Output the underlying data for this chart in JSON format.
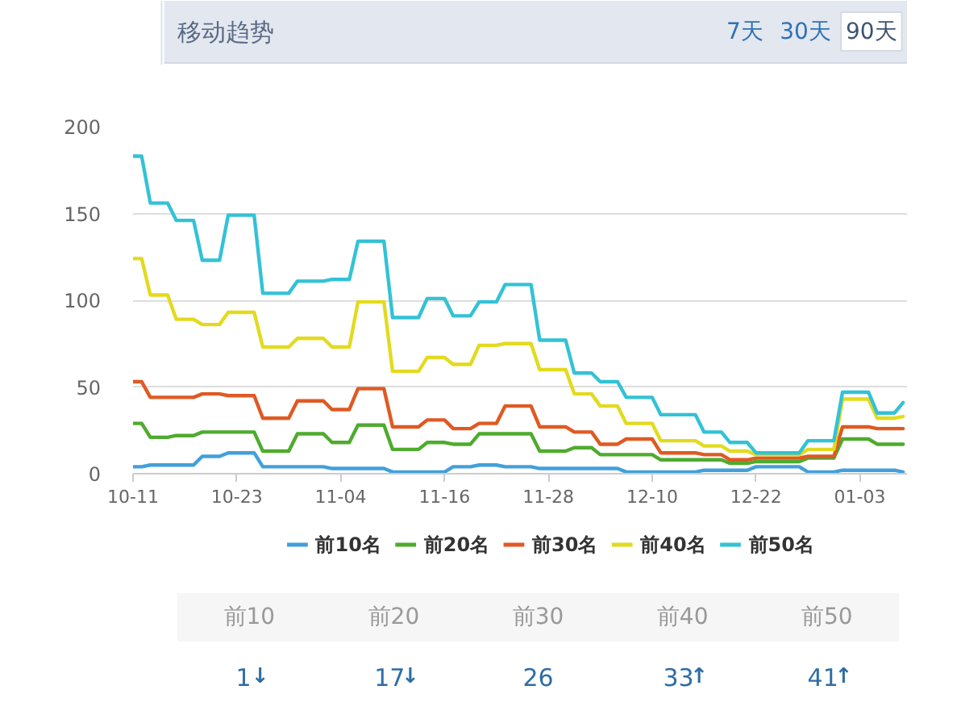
{
  "chart_data": [
    {
      "type": "line",
      "title": "移动趋势",
      "annotations": [
        "7天",
        "30天",
        "90天"
      ],
      "categories": [
        "10-11",
        null,
        null,
        null,
        null,
        null,
        null,
        null,
        null,
        null,
        null,
        null,
        "10-23",
        null,
        null,
        null,
        null,
        null,
        null,
        null,
        null,
        null,
        null,
        null,
        "11-04",
        null,
        null,
        null,
        null,
        null,
        null,
        null,
        null,
        null,
        null,
        null,
        "11-16",
        null,
        null,
        null,
        null,
        null,
        null,
        null,
        null,
        null,
        null,
        null,
        "11-28",
        null,
        null,
        null,
        null,
        null,
        null,
        null,
        null,
        null,
        null,
        null,
        "12-10",
        null,
        null,
        null,
        null,
        null,
        null,
        null,
        null,
        null,
        null,
        null,
        "12-22",
        null,
        null,
        null,
        null,
        null,
        null,
        null,
        null,
        null,
        null,
        null,
        "01-03",
        null,
        null,
        null,
        null,
        null
      ],
      "ylim": [
        0,
        200
      ],
      "yticks": [
        0,
        50,
        100,
        150,
        200
      ],
      "grid": "y",
      "legend": "bottom",
      "series": [
        {
          "name": "前10名",
          "color": "#42a0da",
          "values": [
            4,
            4,
            5,
            5,
            5,
            5,
            5,
            5,
            10,
            10,
            10,
            12,
            12,
            12,
            12,
            4,
            4,
            4,
            4,
            4,
            4,
            4,
            4,
            3,
            3,
            3,
            3,
            3,
            3,
            3,
            1,
            1,
            1,
            1,
            1,
            1,
            1,
            4,
            4,
            4,
            5,
            5,
            5,
            4,
            4,
            4,
            4,
            3,
            3,
            3,
            3,
            3,
            3,
            3,
            3,
            3,
            3,
            1,
            1,
            1,
            1,
            1,
            1,
            1,
            1,
            1,
            2,
            2,
            2,
            2,
            2,
            2,
            4,
            4,
            4,
            4,
            4,
            4,
            1,
            1,
            1,
            1,
            2,
            2,
            2,
            2,
            2,
            2,
            2,
            1
          ]
        },
        {
          "name": "前20名",
          "color": "#4fab2e",
          "values": [
            29,
            29,
            21,
            21,
            21,
            22,
            22,
            22,
            24,
            24,
            24,
            24,
            24,
            24,
            24,
            13,
            13,
            13,
            13,
            23,
            23,
            23,
            23,
            18,
            18,
            18,
            28,
            28,
            28,
            28,
            14,
            14,
            14,
            14,
            18,
            18,
            18,
            17,
            17,
            17,
            23,
            23,
            23,
            23,
            23,
            23,
            23,
            13,
            13,
            13,
            13,
            15,
            15,
            15,
            11,
            11,
            11,
            11,
            11,
            11,
            11,
            8,
            8,
            8,
            8,
            8,
            8,
            8,
            8,
            6,
            6,
            6,
            7,
            7,
            7,
            7,
            7,
            7,
            9,
            9,
            9,
            9,
            20,
            20,
            20,
            20,
            17,
            17,
            17,
            17
          ]
        },
        {
          "name": "前30名",
          "color": "#df5a23",
          "values": [
            53,
            53,
            44,
            44,
            44,
            44,
            44,
            44,
            46,
            46,
            46,
            45,
            45,
            45,
            45,
            32,
            32,
            32,
            32,
            42,
            42,
            42,
            42,
            37,
            37,
            37,
            49,
            49,
            49,
            49,
            27,
            27,
            27,
            27,
            31,
            31,
            31,
            26,
            26,
            26,
            29,
            29,
            29,
            39,
            39,
            39,
            39,
            27,
            27,
            27,
            27,
            24,
            24,
            24,
            17,
            17,
            17,
            20,
            20,
            20,
            20,
            12,
            12,
            12,
            12,
            12,
            11,
            11,
            11,
            8,
            8,
            8,
            9,
            9,
            9,
            9,
            9,
            9,
            10,
            10,
            10,
            10,
            27,
            27,
            27,
            27,
            26,
            26,
            26,
            26
          ]
        },
        {
          "name": "前40名",
          "color": "#e3da1f",
          "values": [
            124,
            124,
            103,
            103,
            103,
            89,
            89,
            89,
            86,
            86,
            86,
            93,
            93,
            93,
            93,
            73,
            73,
            73,
            73,
            78,
            78,
            78,
            78,
            73,
            73,
            73,
            99,
            99,
            99,
            99,
            59,
            59,
            59,
            59,
            67,
            67,
            67,
            63,
            63,
            63,
            74,
            74,
            74,
            75,
            75,
            75,
            75,
            60,
            60,
            60,
            60,
            46,
            46,
            46,
            39,
            39,
            39,
            29,
            29,
            29,
            29,
            19,
            19,
            19,
            19,
            19,
            16,
            16,
            16,
            13,
            13,
            13,
            11,
            11,
            11,
            11,
            11,
            11,
            14,
            14,
            14,
            14,
            43,
            43,
            43,
            43,
            32,
            32,
            32,
            33
          ]
        },
        {
          "name": "前50名",
          "color": "#33c2d6",
          "values": [
            183,
            183,
            156,
            156,
            156,
            146,
            146,
            146,
            123,
            123,
            123,
            149,
            149,
            149,
            149,
            104,
            104,
            104,
            104,
            111,
            111,
            111,
            111,
            112,
            112,
            112,
            134,
            134,
            134,
            134,
            90,
            90,
            90,
            90,
            101,
            101,
            101,
            91,
            91,
            91,
            99,
            99,
            99,
            109,
            109,
            109,
            109,
            77,
            77,
            77,
            77,
            58,
            58,
            58,
            53,
            53,
            53,
            44,
            44,
            44,
            44,
            34,
            34,
            34,
            34,
            34,
            24,
            24,
            24,
            18,
            18,
            18,
            12,
            12,
            12,
            12,
            12,
            12,
            19,
            19,
            19,
            19,
            47,
            47,
            47,
            47,
            35,
            35,
            35,
            41
          ]
        }
      ]
    },
    {
      "type": "other",
      "categories": [
        "前10",
        "前20",
        "前30",
        "前40",
        "前50"
      ],
      "values": [
        1,
        17,
        26,
        33,
        41
      ],
      "data_labels": true,
      "annotations": [
        {
          "text": "↓",
          "x": "前10"
        },
        {
          "text": "↓",
          "x": "前20"
        },
        {
          "text": "↑",
          "x": "前40"
        },
        {
          "text": "↑",
          "x": "前50"
        }
      ]
    }
  ]
}
